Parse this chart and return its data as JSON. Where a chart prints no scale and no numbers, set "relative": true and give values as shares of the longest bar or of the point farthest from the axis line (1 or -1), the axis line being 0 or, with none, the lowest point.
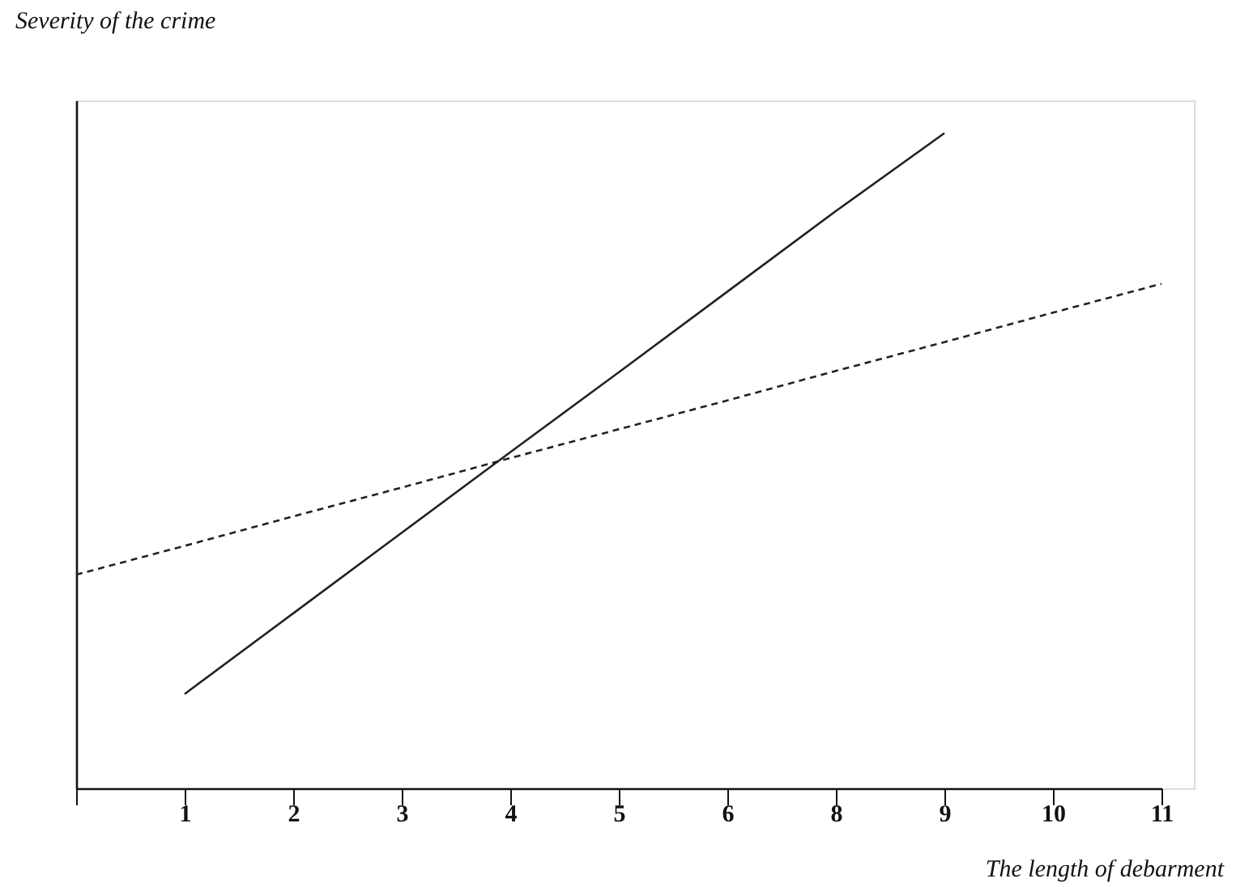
{
  "chart_data": {
    "type": "line",
    "relative": true,
    "ylabel": "Severity of the crime",
    "xlabel": "The length of debarment",
    "categories": [
      null,
      "1",
      "2",
      "3",
      "4",
      "5",
      "6",
      "8",
      "9",
      "10",
      "11"
    ],
    "series": [
      {
        "color": "#222222",
        "line_style": "solid",
        "values": [
          null,
          0.144,
          0.267,
          0.39,
          0.513,
          0.635,
          0.758,
          0.881,
          1.0,
          null,
          null
        ]
      },
      {
        "color": "#222222",
        "line_style": "dashed",
        "values": [
          0.326,
          0.37,
          0.415,
          0.459,
          0.504,
          0.548,
          0.592,
          0.637,
          0.681,
          0.726,
          0.77
        ]
      }
    ]
  }
}
